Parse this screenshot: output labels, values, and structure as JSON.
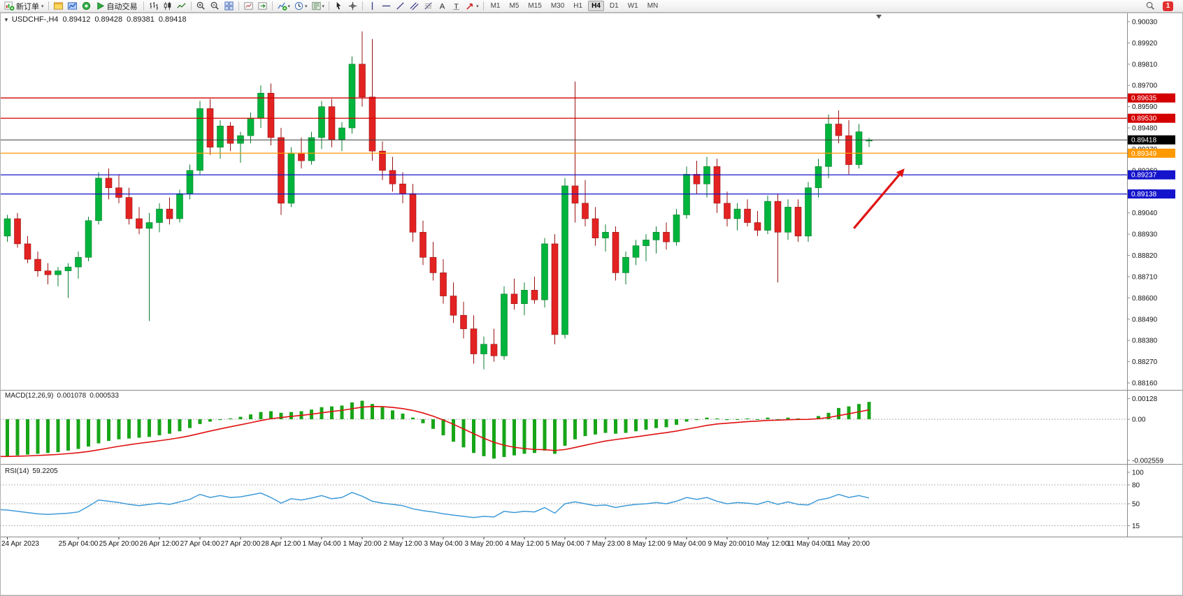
{
  "toolbar": {
    "items": [
      {
        "name": "new-order-button",
        "icon": "new-order-icon",
        "label": "新订单",
        "dropdown": true
      },
      {
        "type": "sep"
      },
      {
        "name": "charts-window-button",
        "icon": "chart-window-icon"
      },
      {
        "name": "profile-button",
        "icon": "profile-icon"
      },
      {
        "name": "data-window-button",
        "icon": "data-window-icon"
      },
      {
        "name": "autotrading-button",
        "icon": "autotrading-icon",
        "label": "自动交易"
      },
      {
        "type": "sep"
      },
      {
        "name": "bar-chart-button",
        "icon": "bar-chart-icon"
      },
      {
        "name": "candlestick-chart-button",
        "icon": "candlestick-icon"
      },
      {
        "name": "line-chart-button",
        "icon": "line-chart-icon"
      },
      {
        "type": "sep"
      },
      {
        "name": "zoom-in-button",
        "icon": "zoom-in-icon"
      },
      {
        "name": "zoom-out-button",
        "icon": "zoom-out-icon"
      },
      {
        "name": "tile-windows-button",
        "icon": "tile-windows-icon"
      },
      {
        "type": "sep"
      },
      {
        "name": "auto-arrange-button",
        "icon": "auto-arrange-icon"
      },
      {
        "name": "chart-shift-button",
        "icon": "chart-shift-icon"
      },
      {
        "type": "sep"
      },
      {
        "name": "indicators-button",
        "icon": "indicators-icon",
        "dropdown": true
      },
      {
        "name": "periods-button",
        "icon": "clock-icon",
        "dropdown": true
      },
      {
        "name": "templates-button",
        "icon": "template-icon",
        "dropdown": true
      },
      {
        "type": "sep"
      },
      {
        "name": "cursor-button",
        "icon": "cursor-icon"
      },
      {
        "name": "crosshair-button",
        "icon": "crosshair-icon"
      },
      {
        "type": "sep"
      },
      {
        "name": "vertical-line-button",
        "icon": "vertical-line-icon"
      },
      {
        "name": "horizontal-line-button",
        "icon": "horizontal-line-icon"
      },
      {
        "name": "trendline-button",
        "icon": "trendline-icon"
      },
      {
        "name": "equidistant-channel-button",
        "icon": "channel-icon"
      },
      {
        "name": "fibonacci-button",
        "icon": "fibonacci-icon"
      },
      {
        "name": "text-button",
        "icon": "text-icon"
      },
      {
        "name": "text-label-button",
        "icon": "text-label-icon"
      },
      {
        "name": "arrows-button",
        "icon": "arrow-shapes-icon",
        "dropdown": true
      },
      {
        "type": "sep"
      }
    ],
    "timeframes": [
      "M1",
      "M5",
      "M15",
      "M30",
      "H1",
      "H4",
      "D1",
      "W1",
      "MN"
    ],
    "active_timeframe": "H4",
    "notification_count": "1"
  },
  "window": {
    "collapse_glyph": "▼",
    "title": "USDCHF-,H4",
    "open": "0.89412",
    "high": "0.89428",
    "low": "0.89381",
    "close": "0.89418"
  },
  "indicators": {
    "macd": {
      "title": "MACD(12,26,9)",
      "value": "0.001078",
      "signal": "0.000533"
    },
    "rsi": {
      "title": "RSI(14)",
      "value": "59.2205"
    }
  },
  "chart_data": [
    {
      "type": "candlestick",
      "symbol": "USDCHF",
      "timeframe": "H4",
      "current_ohlc": {
        "open": 0.89412,
        "high": 0.89428,
        "low": 0.89381,
        "close": 0.89418
      },
      "colors": {
        "up": "#00b43c",
        "down": "#e32222",
        "up_border": "#0b7c2d",
        "down_border": "#991111"
      },
      "y_axis": {
        "min": 0.8816,
        "max": 0.9003,
        "tick": 0.0011,
        "labels": [
          "0.90030",
          "0.89920",
          "0.89810",
          "0.89700",
          "0.89590",
          "0.89480",
          "0.89370",
          "0.89260",
          "0.89150",
          "0.89040",
          "0.88930",
          "0.88820",
          "0.88710",
          "0.88600",
          "0.88490",
          "0.88380",
          "0.88270",
          "0.88160"
        ]
      },
      "hlines": [
        {
          "price": 0.89635,
          "label": "0.89635",
          "color": "#d40000"
        },
        {
          "price": 0.8953,
          "label": "0.89530",
          "color": "#d40000"
        },
        {
          "price": 0.89349,
          "label": "0.89349",
          "color": "#ff9900"
        },
        {
          "price": 0.89237,
          "label": "0.89237",
          "color": "#1414cc"
        },
        {
          "price": 0.89138,
          "label": "0.89138",
          "color": "#1414cc"
        }
      ],
      "bid": {
        "price": 0.89418,
        "label": "0.89418",
        "box_color": "#000000",
        "line_color": "#3c3c3c"
      },
      "arrow": {
        "from_bar": 84.5,
        "from_price": 0.8896,
        "to_bar": 89.5,
        "to_price": 0.8927,
        "color": "#e01414"
      },
      "time_labels": [
        {
          "text": "24 Apr 2023",
          "bar": 1
        },
        {
          "text": "25 Apr 04:00",
          "bar": 8
        },
        {
          "text": "25 Apr 20:00",
          "bar": 12
        },
        {
          "text": "26 Apr 12:00",
          "bar": 16
        },
        {
          "text": "27 Apr 04:00",
          "bar": 20
        },
        {
          "text": "27 Apr 20:00",
          "bar": 24
        },
        {
          "text": "28 Apr 12:00",
          "bar": 28
        },
        {
          "text": "1 May 04:00",
          "bar": 32
        },
        {
          "text": "1 May 20:00",
          "bar": 36
        },
        {
          "text": "2 May 12:00",
          "bar": 40
        },
        {
          "text": "3 May 04:00",
          "bar": 44
        },
        {
          "text": "3 May 20:00",
          "bar": 48
        },
        {
          "text": "4 May 12:00",
          "bar": 52
        },
        {
          "text": "5 May 04:00",
          "bar": 56
        },
        {
          "text": "7 May 23:00",
          "bar": 60
        },
        {
          "text": "8 May 12:00",
          "bar": 64
        },
        {
          "text": "9 May 04:00",
          "bar": 68
        },
        {
          "text": "9 May 20:00",
          "bar": 72
        },
        {
          "text": "10 May 12:00",
          "bar": 76
        },
        {
          "text": "11 May 04:00",
          "bar": 80
        },
        {
          "text": "11 May 20:00",
          "bar": 84
        }
      ],
      "candles": [
        [
          0.8886,
          0.8904,
          0.8884,
          0.8902
        ],
        [
          0.8892,
          0.8903,
          0.8889,
          0.8901
        ],
        [
          0.8901,
          0.8904,
          0.8886,
          0.8888
        ],
        [
          0.8888,
          0.8892,
          0.8878,
          0.888
        ],
        [
          0.888,
          0.8884,
          0.8871,
          0.8874
        ],
        [
          0.8874,
          0.8878,
          0.8867,
          0.8872
        ],
        [
          0.8872,
          0.8876,
          0.8866,
          0.8874
        ],
        [
          0.8874,
          0.8878,
          0.886,
          0.8876
        ],
        [
          0.8876,
          0.8884,
          0.887,
          0.8881
        ],
        [
          0.8881,
          0.8902,
          0.8879,
          0.89
        ],
        [
          0.89,
          0.8925,
          0.8898,
          0.8922
        ],
        [
          0.8922,
          0.8927,
          0.8911,
          0.8917
        ],
        [
          0.8917,
          0.8924,
          0.8909,
          0.8912
        ],
        [
          0.8912,
          0.8917,
          0.8898,
          0.8901
        ],
        [
          0.8901,
          0.8907,
          0.8893,
          0.8896
        ],
        [
          0.8896,
          0.8904,
          0.8848,
          0.8899
        ],
        [
          0.8899,
          0.8909,
          0.8894,
          0.8906
        ],
        [
          0.8906,
          0.8912,
          0.8898,
          0.8901
        ],
        [
          0.8901,
          0.8916,
          0.8899,
          0.8914
        ],
        [
          0.8914,
          0.8929,
          0.8911,
          0.8926
        ],
        [
          0.8926,
          0.8962,
          0.8924,
          0.8958
        ],
        [
          0.8958,
          0.8963,
          0.8934,
          0.8938
        ],
        [
          0.8938,
          0.8952,
          0.8932,
          0.8949
        ],
        [
          0.8949,
          0.8951,
          0.8936,
          0.894
        ],
        [
          0.894,
          0.8946,
          0.893,
          0.8944
        ],
        [
          0.8944,
          0.8956,
          0.894,
          0.8953
        ],
        [
          0.8953,
          0.897,
          0.8948,
          0.8966
        ],
        [
          0.8966,
          0.8971,
          0.8939,
          0.8943
        ],
        [
          0.8943,
          0.8948,
          0.8903,
          0.8909
        ],
        [
          0.8909,
          0.8938,
          0.8907,
          0.8935
        ],
        [
          0.8935,
          0.8943,
          0.8927,
          0.8931
        ],
        [
          0.8931,
          0.8946,
          0.8929,
          0.8943
        ],
        [
          0.8943,
          0.8962,
          0.8937,
          0.8959
        ],
        [
          0.8959,
          0.8963,
          0.8938,
          0.8942
        ],
        [
          0.8942,
          0.8951,
          0.8936,
          0.8948
        ],
        [
          0.8948,
          0.8985,
          0.8945,
          0.8981
        ],
        [
          0.8981,
          0.8998,
          0.8959,
          0.8964
        ],
        [
          0.8964,
          0.8994,
          0.8931,
          0.8936
        ],
        [
          0.8936,
          0.8941,
          0.8921,
          0.8926
        ],
        [
          0.8926,
          0.8933,
          0.8915,
          0.8919
        ],
        [
          0.8919,
          0.8925,
          0.8909,
          0.8914
        ],
        [
          0.8914,
          0.8919,
          0.8889,
          0.8894
        ],
        [
          0.8894,
          0.89,
          0.8877,
          0.8881
        ],
        [
          0.8881,
          0.8889,
          0.8869,
          0.8873
        ],
        [
          0.8873,
          0.888,
          0.8857,
          0.8861
        ],
        [
          0.8861,
          0.8868,
          0.8847,
          0.8851
        ],
        [
          0.8851,
          0.8858,
          0.8839,
          0.8844
        ],
        [
          0.8844,
          0.8851,
          0.8826,
          0.8831
        ],
        [
          0.8831,
          0.884,
          0.8823,
          0.8836
        ],
        [
          0.8836,
          0.8844,
          0.8827,
          0.883
        ],
        [
          0.883,
          0.8866,
          0.8828,
          0.8862
        ],
        [
          0.8862,
          0.887,
          0.8854,
          0.8857
        ],
        [
          0.8857,
          0.8868,
          0.8851,
          0.8864
        ],
        [
          0.8864,
          0.8871,
          0.8857,
          0.8859
        ],
        [
          0.8859,
          0.8891,
          0.8855,
          0.8888
        ],
        [
          0.8888,
          0.8893,
          0.8836,
          0.8841
        ],
        [
          0.8841,
          0.8922,
          0.8839,
          0.8918
        ],
        [
          0.8918,
          0.8972,
          0.8899,
          0.8909
        ],
        [
          0.8909,
          0.8921,
          0.8897,
          0.8901
        ],
        [
          0.8901,
          0.8907,
          0.8887,
          0.8891
        ],
        [
          0.8891,
          0.8898,
          0.8884,
          0.8894
        ],
        [
          0.8894,
          0.8897,
          0.8869,
          0.8873
        ],
        [
          0.8873,
          0.8884,
          0.8867,
          0.8881
        ],
        [
          0.8881,
          0.889,
          0.8877,
          0.8887
        ],
        [
          0.8887,
          0.8893,
          0.8879,
          0.889
        ],
        [
          0.889,
          0.8897,
          0.8883,
          0.8894
        ],
        [
          0.8894,
          0.8899,
          0.8885,
          0.8889
        ],
        [
          0.8889,
          0.8906,
          0.8887,
          0.8903
        ],
        [
          0.8903,
          0.8928,
          0.8901,
          0.8924
        ],
        [
          0.8924,
          0.8931,
          0.8914,
          0.8919
        ],
        [
          0.8919,
          0.8933,
          0.8912,
          0.8928
        ],
        [
          0.8928,
          0.8932,
          0.8904,
          0.8909
        ],
        [
          0.8909,
          0.8915,
          0.8897,
          0.8901
        ],
        [
          0.8901,
          0.8909,
          0.8895,
          0.8906
        ],
        [
          0.8906,
          0.8911,
          0.8897,
          0.8899
        ],
        [
          0.8899,
          0.8905,
          0.8892,
          0.8895
        ],
        [
          0.8895,
          0.8913,
          0.8893,
          0.891
        ],
        [
          0.891,
          0.8914,
          0.8868,
          0.8894
        ],
        [
          0.8894,
          0.8911,
          0.889,
          0.8907
        ],
        [
          0.8907,
          0.8911,
          0.8889,
          0.8892
        ],
        [
          0.8892,
          0.892,
          0.8889,
          0.8917
        ],
        [
          0.8917,
          0.8932,
          0.8912,
          0.8928
        ],
        [
          0.8928,
          0.8955,
          0.8922,
          0.895
        ],
        [
          0.895,
          0.8957,
          0.894,
          0.8944
        ],
        [
          0.8944,
          0.8952,
          0.8924,
          0.8929
        ],
        [
          0.8929,
          0.895,
          0.8927,
          0.8946
        ],
        [
          0.89412,
          0.89428,
          0.89381,
          0.89418
        ]
      ]
    },
    {
      "type": "bar",
      "name": "MACD",
      "label": "MACD(12,26,9) 0.001078 0.000533",
      "params": "12,26,9",
      "signal_period": 9,
      "histogram_color": "#18a518",
      "signal_color": "#e01010",
      "ylim": [
        -0.002559,
        0.00128
      ],
      "axis_labels": [
        "0.00128",
        "0.00",
        "-0.002559"
      ],
      "values": [
        -0.00232,
        -0.0023,
        -0.00225,
        -0.0022,
        -0.00215,
        -0.0021,
        -0.00205,
        -0.00195,
        -0.00185,
        -0.0017,
        -0.0015,
        -0.00135,
        -0.00125,
        -0.0012,
        -0.00115,
        -0.0011,
        -0.001,
        -0.0009,
        -0.00075,
        -0.00055,
        -0.0003,
        -0.00015,
        -5e-05,
        5e-05,
        0.00015,
        0.0003,
        0.00045,
        0.0005,
        0.0004,
        0.00045,
        0.0005,
        0.0006,
        0.00075,
        0.0008,
        0.00085,
        0.00105,
        0.00115,
        0.00095,
        0.00075,
        0.00055,
        0.00035,
        0.0001,
        -0.00025,
        -0.0006,
        -0.001,
        -0.0014,
        -0.00175,
        -0.0021,
        -0.0023,
        -0.00245,
        -0.00235,
        -0.00225,
        -0.00215,
        -0.0021,
        -0.00195,
        -0.00215,
        -0.00165,
        -0.00125,
        -0.00105,
        -0.00095,
        -0.00085,
        -0.0009,
        -0.00085,
        -0.00075,
        -0.00065,
        -0.00055,
        -0.0005,
        -0.00035,
        -0.00015,
        -5e-05,
        0.0001,
        5e-05,
        -5e-05,
        0.0,
        5e-05,
        0.0,
        0.0001,
        0.0,
        0.0001,
        5e-05,
        0.0,
        0.0002,
        0.0004,
        0.0007,
        0.0008,
        0.00095,
        0.00108
      ]
    },
    {
      "type": "line",
      "name": "RSI",
      "label": "RSI(14) 59.2205",
      "period": 14,
      "line_color": "#3f9bd8",
      "ylim": [
        0,
        100
      ],
      "levels": [
        80,
        50,
        15
      ],
      "axis_labels": [
        "100",
        "80",
        "50",
        "15"
      ],
      "values": [
        41,
        40,
        38,
        36,
        34,
        33,
        34,
        35,
        37,
        46,
        56,
        54,
        52,
        49,
        47,
        49,
        51,
        49,
        53,
        57,
        65,
        60,
        63,
        60,
        61,
        64,
        67,
        60,
        51,
        58,
        56,
        59,
        63,
        58,
        60,
        68,
        62,
        54,
        51,
        49,
        47,
        42,
        39,
        37,
        34,
        32,
        30,
        28,
        30,
        29,
        38,
        36,
        38,
        37,
        44,
        35,
        50,
        53,
        50,
        47,
        48,
        44,
        47,
        49,
        50,
        52,
        50,
        54,
        60,
        57,
        60,
        54,
        50,
        52,
        51,
        49,
        54,
        49,
        53,
        49,
        48,
        56,
        59,
        65,
        60,
        63,
        59.22
      ]
    }
  ]
}
